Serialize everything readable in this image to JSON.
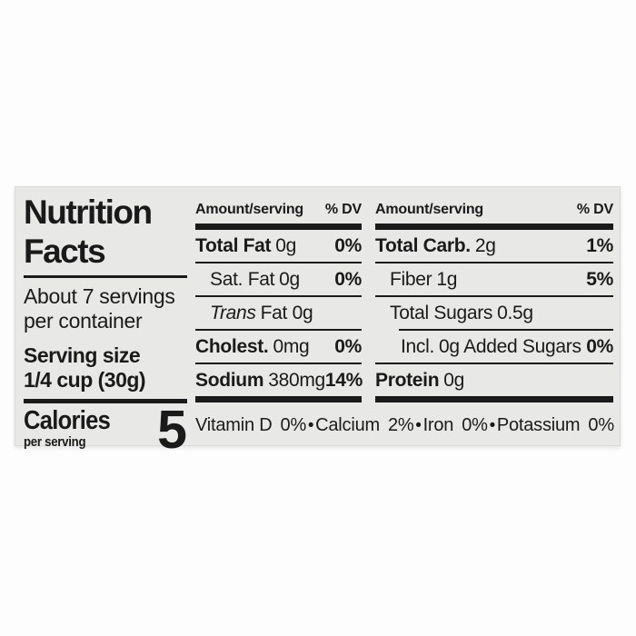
{
  "label": {
    "title_line1": "Nutrition",
    "title_line2": "Facts",
    "servings_line1": "About 7 servings",
    "servings_line2": "per container",
    "serving_size_label": "Serving size",
    "serving_size_value": "1/4 cup (30g)",
    "calories_label": "Calories",
    "calories_sub": "per serving",
    "calories_value": "5",
    "columns": [
      {
        "header_amount": "Amount/serving",
        "header_dv": "% DV",
        "rows": [
          {
            "name": "Total Fat",
            "amount": "0g",
            "dv": "0%"
          },
          {
            "name": "Sat. Fat",
            "amount": "0g",
            "dv": "0%"
          },
          {
            "name": "Trans",
            "amount": "Fat 0g",
            "dv": ""
          },
          {
            "name": "Cholest.",
            "amount": "0mg",
            "dv": "0%"
          },
          {
            "name": "Sodium",
            "amount": "380mg",
            "dv": "14%"
          }
        ]
      },
      {
        "header_amount": "Amount/serving",
        "header_dv": "% DV",
        "rows": [
          {
            "name": "Total Carb.",
            "amount": "2g",
            "dv": "1%"
          },
          {
            "name": "Fiber",
            "amount": "1g",
            "dv": "5%"
          },
          {
            "name": "Total Sugars",
            "amount": "0.5g",
            "dv": ""
          },
          {
            "name": "Incl.",
            "amount": "0g Added Sugars",
            "dv": "0%"
          },
          {
            "name": "Protein",
            "amount": "0g",
            "dv": ""
          }
        ]
      }
    ],
    "micronutrients": [
      {
        "name": "Vitamin D",
        "value": "0%"
      },
      {
        "name": "Calcium",
        "value": "2%"
      },
      {
        "name": "Iron",
        "value": "0%"
      },
      {
        "name": "Potassium",
        "value": "0%"
      }
    ],
    "bullet": "•",
    "colors": {
      "panel_bg": "#e8e8e6",
      "page_bg": "#fdfdfd",
      "ink": "#1a1a1a"
    }
  }
}
